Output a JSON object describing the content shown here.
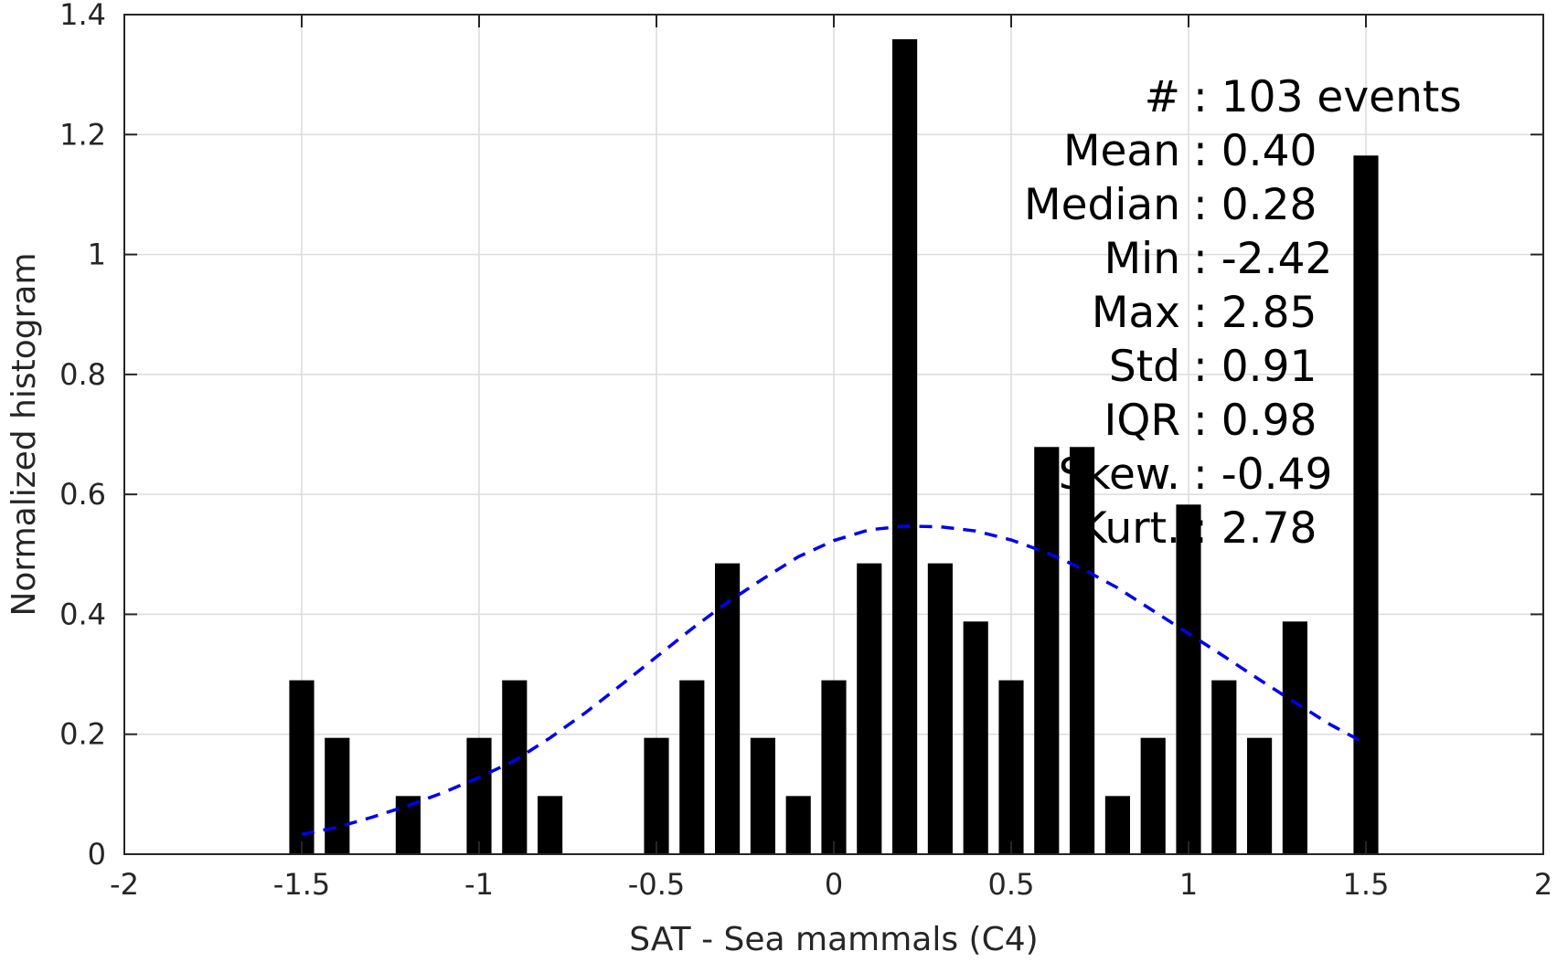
{
  "chart_data": {
    "type": "bar",
    "xlabel": "SAT - Sea mammals  (C4)",
    "ylabel": "Normalized histogram",
    "xlim": [
      -2,
      2
    ],
    "ylim": [
      0,
      1.4
    ],
    "x_ticks": [
      -2,
      -1.5,
      -1,
      -0.5,
      0,
      0.5,
      1,
      1.5,
      2
    ],
    "x_tick_labels": [
      "-2",
      "-1.5",
      "-1",
      "-0.5",
      "0",
      "0.5",
      "1",
      "1.5",
      "2"
    ],
    "y_ticks": [
      0,
      0.2,
      0.4,
      0.6,
      0.8,
      1,
      1.2,
      1.4
    ],
    "y_tick_labels": [
      "0",
      "0.2",
      "0.4",
      "0.6",
      "0.8",
      "1",
      "1.2",
      "1.4"
    ],
    "grid": true,
    "bar_width": 0.07,
    "bars": [
      {
        "x": -1.5,
        "y": 0.29
      },
      {
        "x": -1.4,
        "y": 0.194
      },
      {
        "x": -1.2,
        "y": 0.097
      },
      {
        "x": -1.0,
        "y": 0.194
      },
      {
        "x": -0.9,
        "y": 0.29
      },
      {
        "x": -0.8,
        "y": 0.097
      },
      {
        "x": -0.5,
        "y": 0.194
      },
      {
        "x": -0.4,
        "y": 0.29
      },
      {
        "x": -0.3,
        "y": 0.485
      },
      {
        "x": -0.2,
        "y": 0.194
      },
      {
        "x": -0.1,
        "y": 0.097
      },
      {
        "x": 0.0,
        "y": 0.29
      },
      {
        "x": 0.1,
        "y": 0.485
      },
      {
        "x": 0.2,
        "y": 1.359
      },
      {
        "x": 0.3,
        "y": 0.485
      },
      {
        "x": 0.4,
        "y": 0.388
      },
      {
        "x": 0.5,
        "y": 0.29
      },
      {
        "x": 0.6,
        "y": 0.679
      },
      {
        "x": 0.7,
        "y": 0.679
      },
      {
        "x": 0.8,
        "y": 0.097
      },
      {
        "x": 0.9,
        "y": 0.194
      },
      {
        "x": 1.0,
        "y": 0.583
      },
      {
        "x": 1.1,
        "y": 0.29
      },
      {
        "x": 1.2,
        "y": 0.194
      },
      {
        "x": 1.3,
        "y": 0.388
      },
      {
        "x": 1.5,
        "y": 1.165
      }
    ],
    "fit_curve": {
      "style": "dashed",
      "color": "#0000ee",
      "x": [
        -1.5,
        -1.4,
        -1.3,
        -1.2,
        -1.1,
        -1.0,
        -0.9,
        -0.8,
        -0.7,
        -0.6,
        -0.5,
        -0.4,
        -0.3,
        -0.2,
        -0.1,
        0.0,
        0.1,
        0.2,
        0.3,
        0.4,
        0.5,
        0.6,
        0.7,
        0.8,
        0.9,
        1.0,
        1.1,
        1.2,
        1.3,
        1.4,
        1.5
      ],
      "y": [
        0.033,
        0.045,
        0.062,
        0.081,
        0.103,
        0.128,
        0.156,
        0.194,
        0.236,
        0.282,
        0.329,
        0.376,
        0.42,
        0.459,
        0.496,
        0.523,
        0.541,
        0.547,
        0.546,
        0.539,
        0.524,
        0.503,
        0.476,
        0.444,
        0.406,
        0.368,
        0.33,
        0.291,
        0.253,
        0.216,
        0.184
      ]
    },
    "stats": [
      "#  : 103 events",
      "Mean : 0.40",
      "Median : 0.28",
      "Min : -2.42",
      "Max : 2.85",
      "Std : 0.91",
      "IQR : 0.98",
      "Skew. : -0.49",
      "Kurt. : 2.78"
    ],
    "colors": {
      "bars": "#000000",
      "fit": "#0000ee",
      "axis": "#262626",
      "grid": "#dcdcdc"
    }
  }
}
